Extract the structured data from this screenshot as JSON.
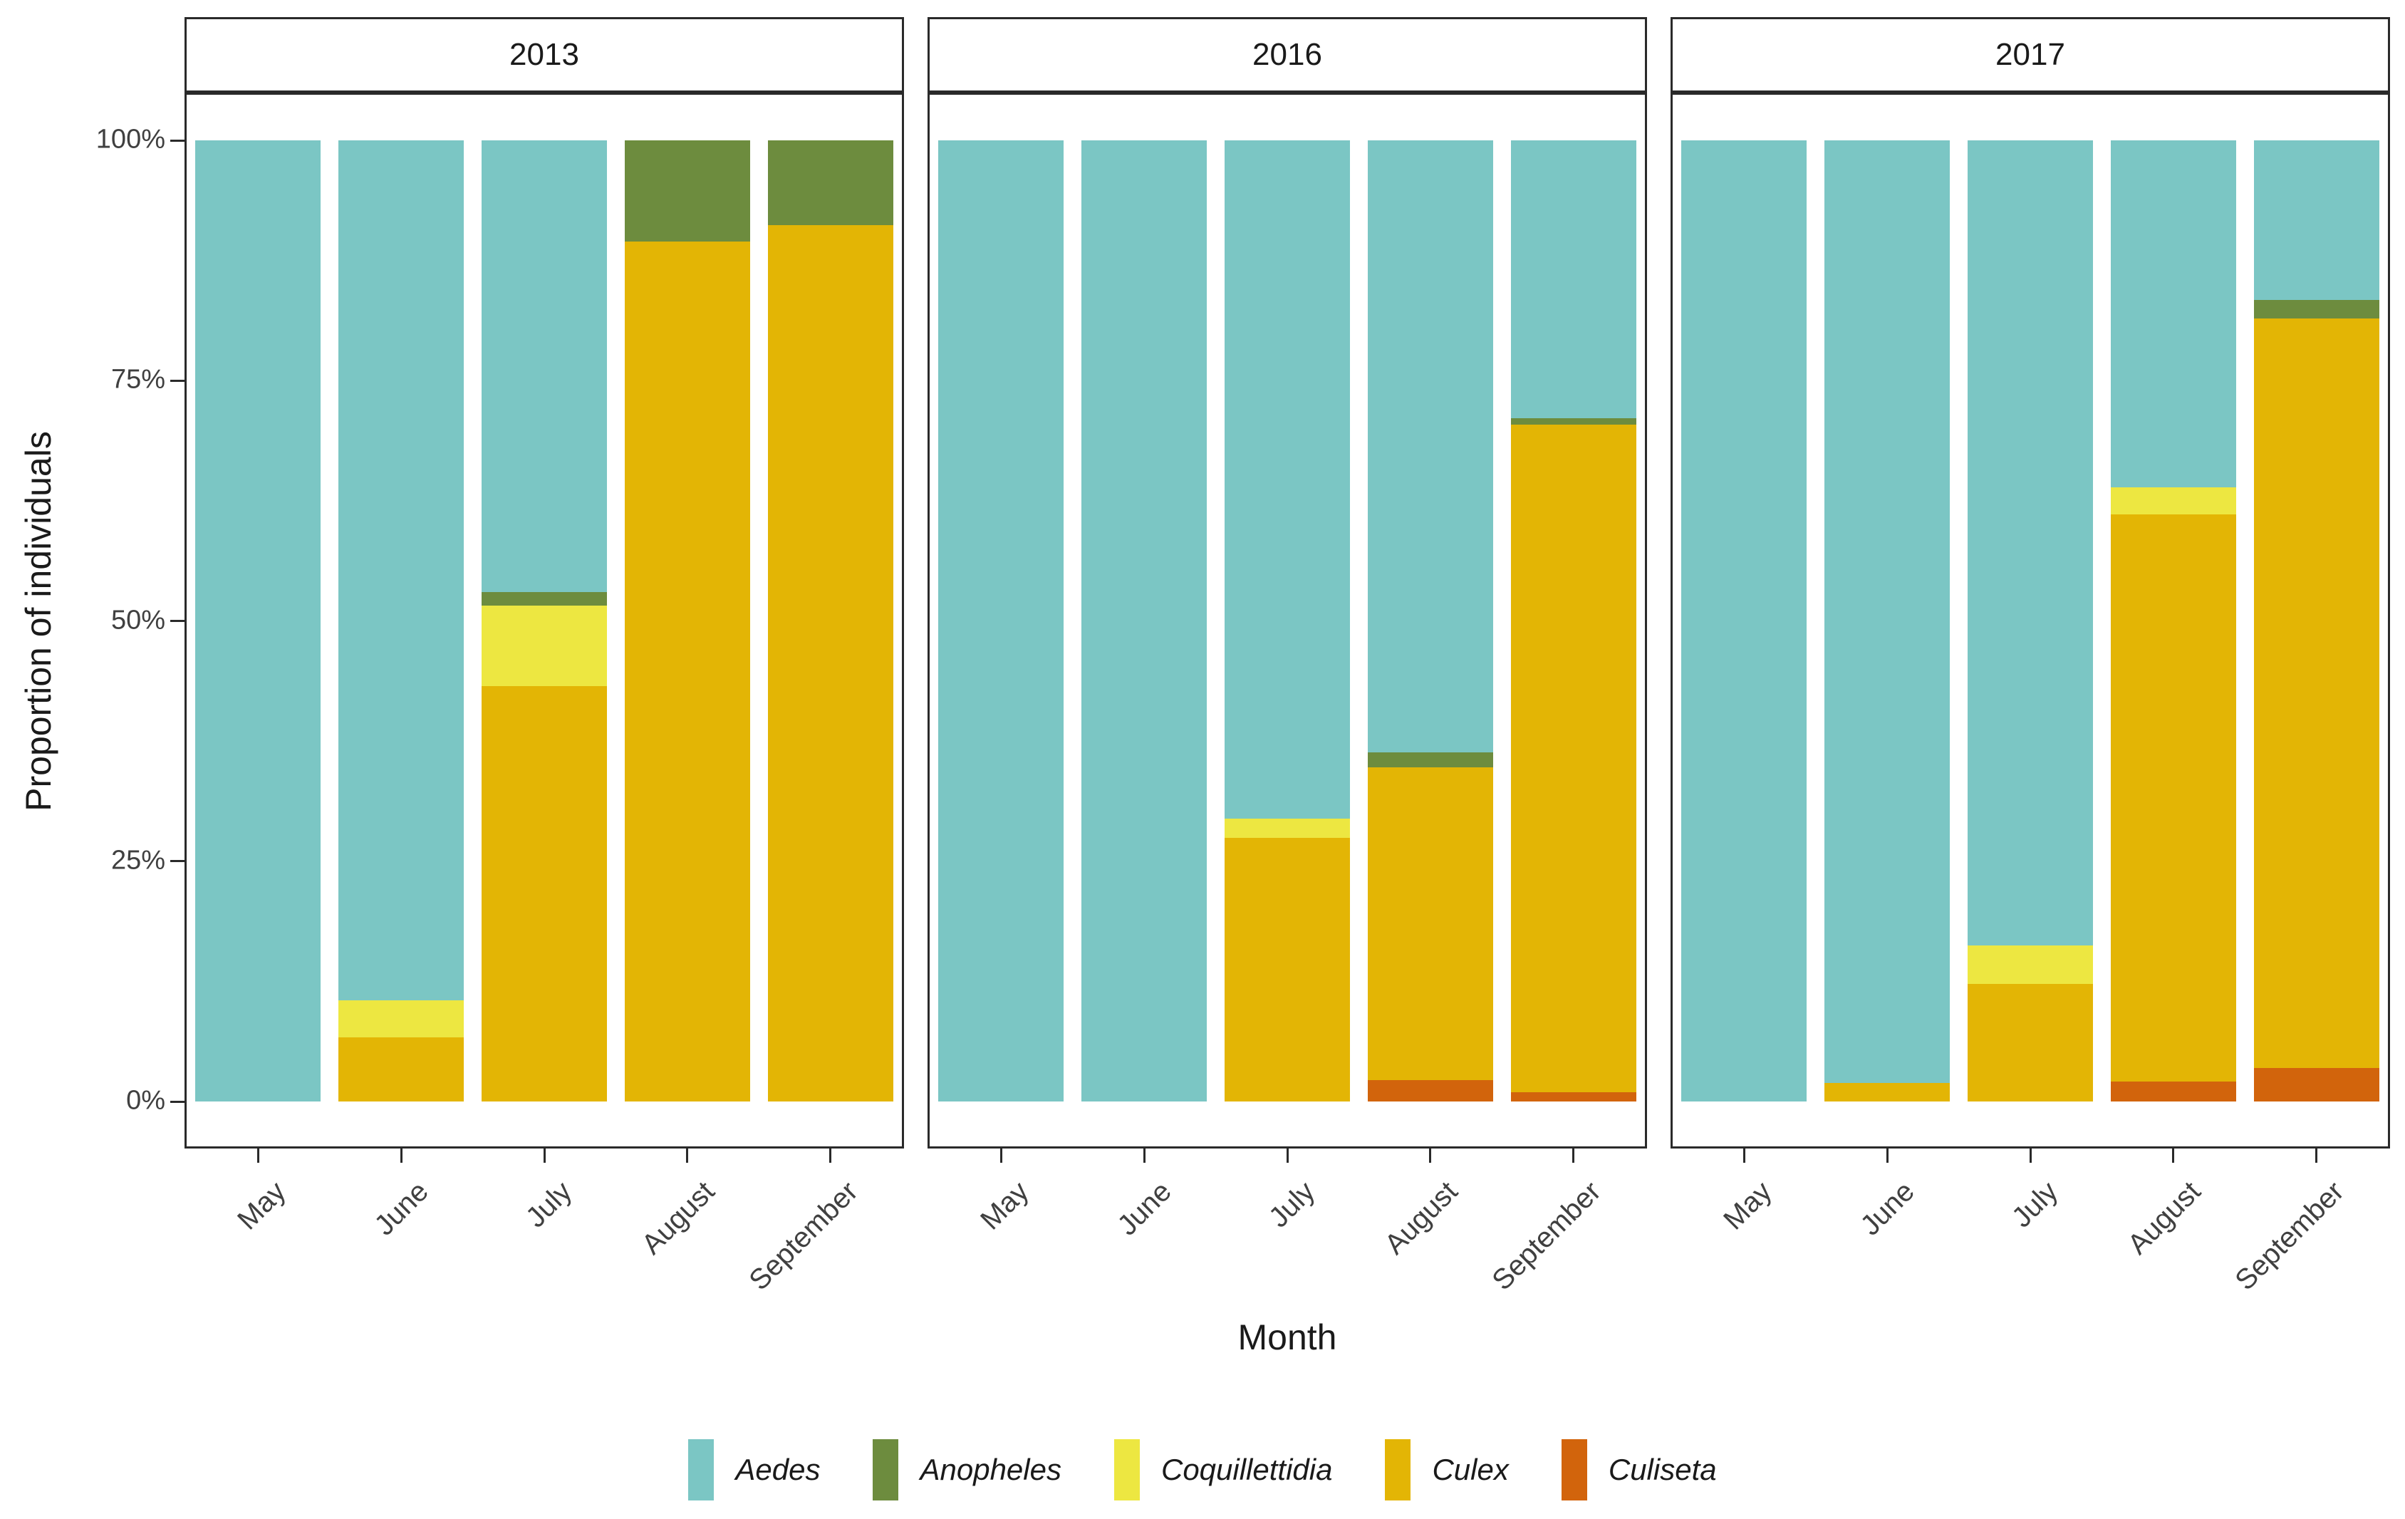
{
  "chart_data": {
    "type": "bar",
    "stacked": true,
    "percent_normalized": true,
    "grid": false,
    "xlabel": "Month",
    "ylabel": "Proportion of individuals",
    "ylim": [
      0,
      100
    ],
    "yticks": [
      {
        "value": 100,
        "label": "100%"
      },
      {
        "value": 75,
        "label": "75%"
      },
      {
        "value": 50,
        "label": "50%"
      },
      {
        "value": 25,
        "label": "25%"
      },
      {
        "value": 0,
        "label": "0%"
      }
    ],
    "categories": [
      "May",
      "June",
      "July",
      "August",
      "September"
    ],
    "stack_order_bottom_to_top": [
      "Culiseta",
      "Culex",
      "Coquillettidia",
      "Anopheles",
      "Aedes"
    ],
    "colors": {
      "Aedes": "#7BC6C4",
      "Anopheles": "#6D8C3E",
      "Coquillettidia": "#EDE741",
      "Culex": "#E3B505",
      "Culiseta": "#D2640C"
    },
    "legend": {
      "position": "bottom",
      "entries": [
        {
          "label": "Aedes",
          "color": "#7BC6C4"
        },
        {
          "label": "Anopheles",
          "color": "#6D8C3E"
        },
        {
          "label": "Coquillettidia",
          "color": "#EDE741"
        },
        {
          "label": "Culex",
          "color": "#E3B505"
        },
        {
          "label": "Culiseta",
          "color": "#D2640C"
        }
      ]
    },
    "facets": [
      {
        "label": "2013",
        "values": {
          "Aedes": [
            100,
            89.5,
            47.0,
            0,
            0
          ],
          "Anopheles": [
            0,
            0,
            1.4,
            10.5,
            8.8
          ],
          "Coquillettidia": [
            0,
            3.8,
            8.4,
            0,
            0
          ],
          "Culex": [
            0,
            6.7,
            43.2,
            89.5,
            91.2
          ],
          "Culiseta": [
            0,
            0,
            0,
            0,
            0
          ]
        }
      },
      {
        "label": "2016",
        "values": {
          "Aedes": [
            100,
            100,
            70.6,
            63.7,
            28.9
          ],
          "Anopheles": [
            0,
            0,
            0,
            1.5,
            0.7
          ],
          "Coquillettidia": [
            0,
            0,
            2.0,
            0,
            0
          ],
          "Culex": [
            0,
            0,
            27.4,
            32.6,
            69.4
          ],
          "Culiseta": [
            0,
            0,
            0,
            2.2,
            1.0
          ]
        }
      },
      {
        "label": "2017",
        "values": {
          "Aedes": [
            100,
            98.1,
            83.8,
            36.1,
            16.6
          ],
          "Anopheles": [
            0,
            0,
            0,
            0,
            1.9
          ],
          "Coquillettidia": [
            0,
            0,
            4.0,
            2.8,
            0
          ],
          "Culex": [
            0,
            1.9,
            12.2,
            59.0,
            78.0
          ],
          "Culiseta": [
            0,
            0,
            0,
            2.1,
            3.5
          ]
        }
      }
    ]
  }
}
